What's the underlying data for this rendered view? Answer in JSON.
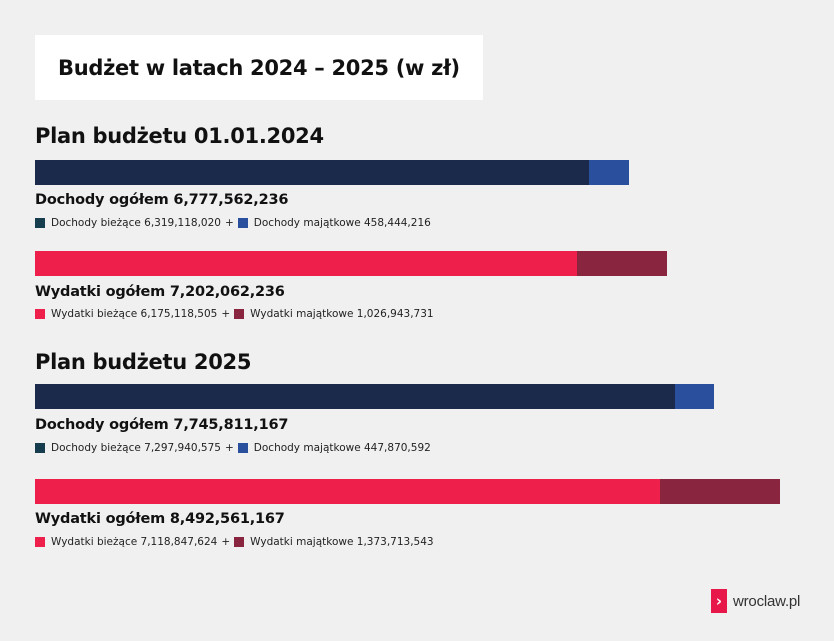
{
  "title": "Budżet w latach 2024 – 2025 (w zł)",
  "colors": {
    "dochody_biezace": "#1b2a4a",
    "dochody_majatkowe": "#2a4f9c",
    "wydatki_biezace": "#ee1f4b",
    "wydatki_majatkowe": "#8a2540",
    "legend_dochody_biezace": "#163d4d"
  },
  "logo": "wroclaw.pl",
  "chart_data": [
    {
      "type": "bar",
      "title": "Plan budżetu 01.01.2024",
      "stacked": true,
      "orientation": "horizontal",
      "xlim": [
        0,
        8492561167
      ],
      "rows": [
        {
          "total_label": "Dochody ogółem 6,777,562,236",
          "total": 6777562236,
          "parts": [
            {
              "name": "Dochody bieżące",
              "label": "Dochody bieżące 6,319,118,020",
              "value": 6319118020,
              "color": "#1b2a4a",
              "legend_color": "#163d4d"
            },
            {
              "name": "Dochody majątkowe",
              "label": "Dochody majątkowe 458,444,216",
              "value": 458444216,
              "color": "#2a4f9c",
              "legend_color": "#2a4f9c"
            }
          ]
        },
        {
          "total_label": "Wydatki ogółem 7,202,062,236",
          "total": 7202062236,
          "parts": [
            {
              "name": "Wydatki bieżące",
              "label": "Wydatki bieżące 6,175,118,505",
              "value": 6175118505,
              "color": "#ee1f4b",
              "legend_color": "#ee1f4b"
            },
            {
              "name": "Wydatki majątkowe",
              "label": "Wydatki majątkowe 1,026,943,731",
              "value": 1026943731,
              "color": "#8a2540",
              "legend_color": "#8a2540"
            }
          ]
        }
      ]
    },
    {
      "type": "bar",
      "title": "Plan budżetu 2025",
      "stacked": true,
      "orientation": "horizontal",
      "xlim": [
        0,
        8492561167
      ],
      "rows": [
        {
          "total_label": "Dochody ogółem 7,745,811,167",
          "total": 7745811167,
          "parts": [
            {
              "name": "Dochody bieżące",
              "label": "Dochody bieżące 7,297,940,575",
              "value": 7297940575,
              "color": "#1b2a4a",
              "legend_color": "#163d4d"
            },
            {
              "name": "Dochody majątkowe",
              "label": "Dochody majątkowe 447,870,592",
              "value": 447870592,
              "color": "#2a4f9c",
              "legend_color": "#2a4f9c"
            }
          ]
        },
        {
          "total_label": "Wydatki ogółem 8,492,561,167",
          "total": 8492561167,
          "parts": [
            {
              "name": "Wydatki bieżące",
              "label": "Wydatki bieżące 7,118,847,624",
              "value": 7118847624,
              "color": "#ee1f4b",
              "legend_color": "#ee1f4b"
            },
            {
              "name": "Wydatki majątkowe",
              "label": "Wydatki majątkowe 1,373,713,543",
              "value": 1373713543,
              "color": "#8a2540",
              "legend_color": "#8a2540"
            }
          ]
        }
      ]
    }
  ]
}
